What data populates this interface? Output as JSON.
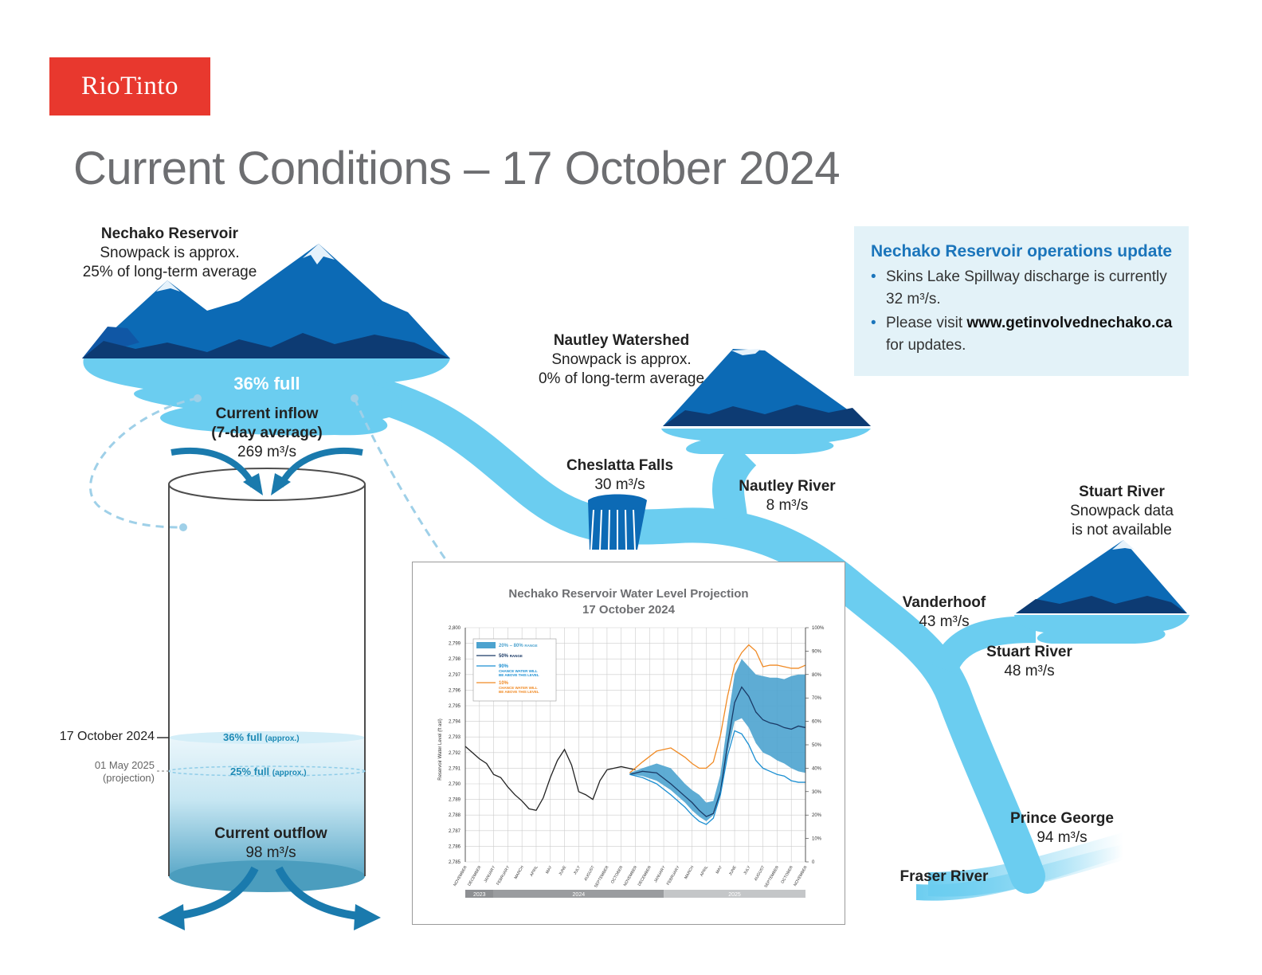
{
  "logo": {
    "text": "RioTinto"
  },
  "page_title": "Current Conditions – 17 October 2024",
  "colors": {
    "river": "#6bcdf0",
    "mountain_dark": "#0d3b73",
    "mountain_mid": "#0c6ab5",
    "logo_red": "#e8382e",
    "accent_blue": "#1b75bb"
  },
  "nechako_reservoir": {
    "name": "Nechako Reservoir",
    "line1": "Snowpack is approx.",
    "line2": "25% of long-term average",
    "fill": "36% full"
  },
  "inflow": {
    "label": "Current inflow",
    "sub": "(7-day average)",
    "value": "269 m³/s"
  },
  "outflow": {
    "label": "Current outflow",
    "value": "98 m³/s"
  },
  "levels": {
    "current_date": "17 October 2024",
    "current_text": "36% full",
    "current_note": "(approx.)",
    "proj_date": "01 May 2025",
    "proj_note": "(projection)",
    "proj_text": "25% full",
    "proj_note2": "(approx.)"
  },
  "nautley_watershed": {
    "name": "Nautley Watershed",
    "line1": "Snowpack is approx.",
    "line2": "0% of long-term average"
  },
  "cheslatta": {
    "name": "Cheslatta Falls",
    "value": "30 m³/s"
  },
  "nautley_river": {
    "name": "Nautley River",
    "value": "8 m³/s"
  },
  "stuart_watershed": {
    "name": "Stuart River",
    "line1": "Snowpack data",
    "line2": "is not available"
  },
  "vanderhoof": {
    "name": "Vanderhoof",
    "value": "43 m³/s"
  },
  "stuart_river": {
    "name": "Stuart River",
    "value": "48 m³/s"
  },
  "prince_george": {
    "name": "Prince George",
    "value": "94 m³/s"
  },
  "fraser": {
    "name": "Fraser River"
  },
  "ops": {
    "title": "Nechako Reservoir operations update",
    "item1": "Skins Lake Spillway discharge is currently 32 m³/s.",
    "item2_pre": "Please visit ",
    "item2_link": "www.getinvolvednechako.ca",
    "item2_post": " for updates."
  },
  "chart_data": {
    "type": "line",
    "title": "Nechako Reservoir Water Level Projection",
    "subtitle": "17 October 2024",
    "ylabel": "Reservoir Water Level (ft asl)",
    "ylim": [
      2785,
      2800
    ],
    "yticks": [
      "2,785",
      "2,786",
      "2,787",
      "2,788",
      "2,789",
      "2,790",
      "2,791",
      "2,792",
      "2,793",
      "2,794",
      "2,795",
      "2,796",
      "2,797",
      "2,798",
      "2,799",
      "2,800"
    ],
    "y2ticks": [
      "0",
      "10%",
      "20%",
      "30%",
      "40%",
      "50%",
      "60%",
      "70%",
      "80%",
      "90%",
      "100%"
    ],
    "months": [
      "NOVEMBER",
      "DECEMBER",
      "JANUARY",
      "FEBRUARY",
      "MARCH",
      "APRIL",
      "MAY",
      "JUNE",
      "JULY",
      "AUGUST",
      "SEPTEMBER",
      "OCTOBER",
      "NOVEMBER",
      "DECEMBER",
      "JANUARY",
      "FEBRUARY",
      "MARCH",
      "APRIL",
      "MAY",
      "JUNE",
      "JULY",
      "AUGUST",
      "SEPTEMBER",
      "OCTOBER",
      "NOVEMBER"
    ],
    "years": [
      {
        "label": "2023",
        "start": 0,
        "end": 2
      },
      {
        "label": "2024",
        "start": 2,
        "end": 14
      },
      {
        "label": "2025",
        "start": 14,
        "end": 24
      }
    ],
    "legend": [
      {
        "label": "20% – 80%",
        "sub": "RANGE",
        "color": "#4da3cf",
        "kind": "band"
      },
      {
        "label": "50%",
        "sub": "RANGE",
        "color": "#1a3a66",
        "kind": "line"
      },
      {
        "label": "90%",
        "sub": "CHANCE WATER WILL BE ABOVE THIS LEVEL",
        "color": "#1b8fd2",
        "kind": "line"
      },
      {
        "label": "10%",
        "sub": "CHANCE WATER WILL BE ABOVE THIS LEVEL",
        "color": "#f08a24",
        "kind": "line"
      }
    ],
    "series": [
      {
        "name": "observed",
        "color": "#222222",
        "x": [
          0,
          0.5,
          1,
          1.5,
          2,
          2.5,
          3,
          3.5,
          4,
          4.5,
          5,
          5.5,
          6,
          6.5,
          7,
          7.5,
          8,
          8.5,
          9,
          9.5,
          10,
          10.5,
          11,
          11.5,
          12
        ],
        "values": [
          2792.4,
          2792.0,
          2791.6,
          2791.3,
          2790.6,
          2790.4,
          2789.8,
          2789.3,
          2788.9,
          2788.4,
          2788.3,
          2789.1,
          2790.4,
          2791.5,
          2792.2,
          2791.2,
          2789.5,
          2789.3,
          2789.0,
          2790.2,
          2790.9,
          2791.0,
          2791.1,
          2791.0,
          2790.9
        ]
      },
      {
        "name": "50%",
        "color": "#1a3a66",
        "x": [
          11.6,
          12.5,
          13.5,
          14.5,
          15.5,
          16,
          16.5,
          17,
          17.5,
          18,
          18.5,
          19,
          19.5,
          20,
          20.5,
          21,
          21.5,
          22,
          22.5,
          23,
          23.5,
          24
        ],
        "values": [
          2790.6,
          2790.8,
          2790.7,
          2790.0,
          2789.2,
          2788.8,
          2788.3,
          2787.9,
          2788.1,
          2789.5,
          2792.5,
          2795.2,
          2796.2,
          2795.6,
          2794.6,
          2794.1,
          2793.9,
          2793.8,
          2793.6,
          2793.5,
          2793.7,
          2793.6
        ]
      },
      {
        "name": "90%",
        "color": "#1b8fd2",
        "x": [
          11.6,
          12.5,
          13.5,
          14.5,
          15.5,
          16,
          16.5,
          17,
          17.5,
          18,
          18.5,
          19,
          19.5,
          20,
          20.5,
          21,
          21.5,
          22,
          22.5,
          23,
          23.5,
          24
        ],
        "values": [
          2790.6,
          2790.4,
          2790.0,
          2789.3,
          2788.5,
          2788.0,
          2787.6,
          2787.4,
          2787.8,
          2789.3,
          2791.8,
          2793.4,
          2793.2,
          2792.5,
          2791.5,
          2791.0,
          2790.8,
          2790.6,
          2790.5,
          2790.2,
          2790.1,
          2790.1
        ]
      },
      {
        "name": "10%",
        "color": "#f08a24",
        "x": [
          11.6,
          12.5,
          13.5,
          14.5,
          15.5,
          16,
          16.5,
          17,
          17.5,
          18,
          18.5,
          19,
          19.5,
          20,
          20.5,
          21,
          21.5,
          22,
          22.5,
          23,
          23.5,
          24
        ],
        "values": [
          2790.7,
          2791.4,
          2792.1,
          2792.3,
          2791.7,
          2791.3,
          2791.0,
          2791.0,
          2791.4,
          2793.1,
          2795.6,
          2797.6,
          2798.4,
          2798.9,
          2798.5,
          2797.5,
          2797.6,
          2797.6,
          2797.5,
          2797.4,
          2797.4,
          2797.6
        ]
      },
      {
        "name": "20% – 80%",
        "color": "#4da3cf",
        "kind": "band",
        "x": [
          11.6,
          12.5,
          13.5,
          14.5,
          15.5,
          16,
          16.5,
          17,
          17.5,
          18,
          18.5,
          19,
          19.5,
          20,
          20.5,
          21,
          21.5,
          22,
          22.5,
          23,
          23.5,
          24
        ],
        "low": [
          2790.6,
          2790.5,
          2790.2,
          2789.6,
          2788.8,
          2788.3,
          2787.9,
          2787.6,
          2788.0,
          2789.3,
          2792.0,
          2794.0,
          2794.2,
          2793.6,
          2792.6,
          2792.0,
          2791.8,
          2791.5,
          2791.3,
          2791.0,
          2790.8,
          2790.7
        ],
        "high": [
          2790.7,
          2791.0,
          2791.3,
          2791.0,
          2790.0,
          2789.6,
          2789.3,
          2788.8,
          2788.9,
          2790.6,
          2794.0,
          2797.0,
          2798.0,
          2797.5,
          2797.0,
          2796.9,
          2796.8,
          2796.8,
          2796.7,
          2796.9,
          2797.0,
          2797.0
        ]
      }
    ]
  }
}
